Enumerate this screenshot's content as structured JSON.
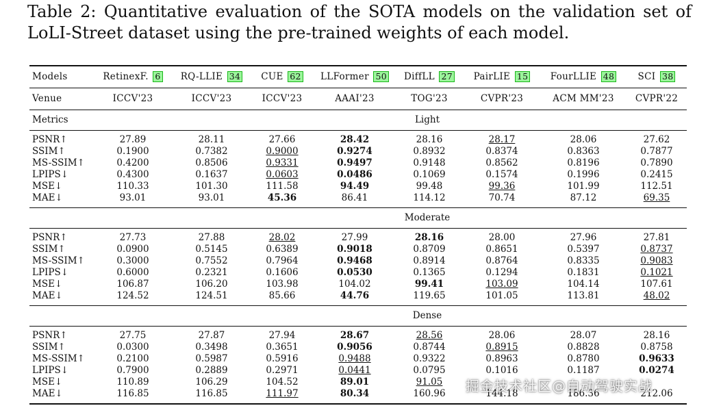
{
  "caption": "Table 2: Quantitative evaluation of the SOTA models on the validation set of LoLI-Street dataset using the pre-trained weights of each model.",
  "colors": {
    "ref_bg": "#9bf59b",
    "ref_border": "#19b619"
  },
  "header": {
    "models_label": "Models",
    "venue_label": "Venue",
    "metrics_label": "Metrics",
    "models": [
      {
        "name": "RetinexF.",
        "ref": "6"
      },
      {
        "name": "RQ-LLIE",
        "ref": "34"
      },
      {
        "name": "CUE",
        "ref": "62"
      },
      {
        "name": "LLFormer",
        "ref": "50"
      },
      {
        "name": "DiffLL",
        "ref": "27"
      },
      {
        "name": "PairLIE",
        "ref": "15"
      },
      {
        "name": "FourLLIE",
        "ref": "48"
      },
      {
        "name": "SCI",
        "ref": "38"
      }
    ],
    "venues": [
      "ICCV'23",
      "ICCV'23",
      "ICCV'23",
      "AAAI'23",
      "TOG'23",
      "CVPR'23",
      "ACM MM'23",
      "CVPR'22"
    ]
  },
  "sections": [
    {
      "title": "Light",
      "rows": [
        {
          "metric": "PSNR↑",
          "values": [
            "27.89",
            "28.11",
            "27.66",
            "28.42",
            "28.16",
            "28.17",
            "28.06",
            "27.62"
          ],
          "bold": [
            3
          ],
          "underline": [
            5
          ]
        },
        {
          "metric": "SSIM↑",
          "values": [
            "0.1900",
            "0.7382",
            "0.9000",
            "0.9274",
            "0.8932",
            "0.8374",
            "0.8363",
            "0.7877"
          ],
          "bold": [
            3
          ],
          "underline": [
            2
          ]
        },
        {
          "metric": "MS-SSIM↑",
          "values": [
            "0.4200",
            "0.8506",
            "0.9331",
            "0.9497",
            "0.9148",
            "0.8562",
            "0.8196",
            "0.7890"
          ],
          "bold": [
            3
          ],
          "underline": [
            2
          ]
        },
        {
          "metric": "LPIPS↓",
          "values": [
            "0.4300",
            "0.1637",
            "0.0603",
            "0.0486",
            "0.1069",
            "0.1574",
            "0.1996",
            "0.2415"
          ],
          "bold": [
            3
          ],
          "underline": [
            2
          ]
        },
        {
          "metric": "MSE↓",
          "values": [
            "110.33",
            "101.30",
            "111.58",
            "94.49",
            "99.48",
            "99.36",
            "101.99",
            "112.51"
          ],
          "bold": [
            3
          ],
          "underline": [
            5
          ]
        },
        {
          "metric": "MAE↓",
          "values": [
            "93.01",
            "93.01",
            "45.36",
            "86.41",
            "114.12",
            "70.74",
            "87.12",
            "69.35"
          ],
          "bold": [
            2
          ],
          "underline": [
            7
          ]
        }
      ]
    },
    {
      "title": "Moderate",
      "rows": [
        {
          "metric": "PSNR↑",
          "values": [
            "27.73",
            "27.88",
            "28.02",
            "27.99",
            "28.16",
            "28.00",
            "27.96",
            "27.81"
          ],
          "bold": [
            4
          ],
          "underline": [
            2
          ]
        },
        {
          "metric": "SSIM↑",
          "values": [
            "0.0900",
            "0.5145",
            "0.6389",
            "0.9018",
            "0.8709",
            "0.8651",
            "0.5397",
            "0.8737"
          ],
          "bold": [
            3
          ],
          "underline": [
            7
          ]
        },
        {
          "metric": "MS-SSIM↑",
          "values": [
            "0.3000",
            "0.7552",
            "0.7964",
            "0.9468",
            "0.8914",
            "0.8764",
            "0.8335",
            "0.9083"
          ],
          "bold": [
            3
          ],
          "underline": [
            7
          ]
        },
        {
          "metric": "LPIPS↓",
          "values": [
            "0.6000",
            "0.2321",
            "0.1606",
            "0.0530",
            "0.1365",
            "0.1294",
            "0.1831",
            "0.1021"
          ],
          "bold": [
            3
          ],
          "underline": [
            7
          ]
        },
        {
          "metric": "MSE↓",
          "values": [
            "106.87",
            "106.20",
            "103.98",
            "104.02",
            "99.41",
            "103.09",
            "104.14",
            "107.61"
          ],
          "bold": [
            4
          ],
          "underline": [
            5
          ]
        },
        {
          "metric": "MAE↓",
          "values": [
            "124.52",
            "124.51",
            "85.66",
            "44.76",
            "119.65",
            "101.05",
            "113.81",
            "48.02"
          ],
          "bold": [
            3
          ],
          "underline": [
            7
          ]
        }
      ]
    },
    {
      "title": "Dense",
      "rows": [
        {
          "metric": "PSNR↑",
          "values": [
            "27.75",
            "27.87",
            "27.94",
            "28.67",
            "28.56",
            "28.06",
            "28.07",
            "28.16"
          ],
          "bold": [
            3
          ],
          "underline": [
            4
          ]
        },
        {
          "metric": "SSIM↑",
          "values": [
            "0.0300",
            "0.3498",
            "0.3651",
            "0.9056",
            "0.8744",
            "0.8915",
            "0.8828",
            "0.8758"
          ],
          "bold": [
            3
          ],
          "underline": [
            5
          ]
        },
        {
          "metric": "MS-SSIM↑",
          "values": [
            "0.2100",
            "0.5987",
            "0.5916",
            "0.9488",
            "0.9322",
            "0.8963",
            "0.8780",
            "0.9633"
          ],
          "bold": [
            7
          ],
          "underline": [
            3
          ]
        },
        {
          "metric": "LPIPS↓",
          "values": [
            "0.7900",
            "0.2889",
            "0.2971",
            "0.0441",
            "0.0795",
            "0.1016",
            "0.1187",
            "0.0274"
          ],
          "bold": [
            7
          ],
          "underline": [
            3
          ]
        },
        {
          "metric": "MSE↓",
          "values": [
            "110.89",
            "106.29",
            "104.52",
            "89.01",
            "91.05",
            "",
            "",
            ""
          ],
          "bold": [
            3
          ],
          "underline": [
            4
          ]
        },
        {
          "metric": "MAE↓",
          "values": [
            "116.85",
            "116.85",
            "111.97",
            "80.34",
            "160.96",
            "144.18",
            "186.36",
            "212.06"
          ],
          "bold": [
            3
          ],
          "underline": [
            2
          ]
        }
      ]
    }
  ],
  "watermark": "掘金技术社区@自动驾驶实战"
}
